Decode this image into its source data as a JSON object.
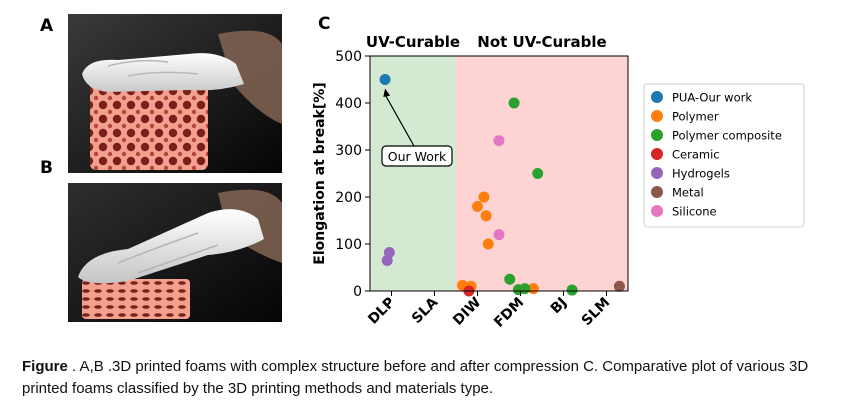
{
  "panels": {
    "a": "A",
    "b": "B",
    "c": "C"
  },
  "caption": {
    "label": "Figure",
    "text": "  . A,B .3D printed foams with complex structure before and after compression C. Comparative plot of various 3D printed foams classified by the 3D printing methods and materials type."
  },
  "chart_data": {
    "type": "scatter",
    "categories": [
      "DLP",
      "SLA",
      "DIW",
      "FDM",
      "BJ",
      "SLM"
    ],
    "ylabel": "Elongation at break[%]",
    "ylim": [
      0,
      500
    ],
    "yticks": [
      0,
      100,
      200,
      300,
      400,
      500
    ],
    "regions": [
      {
        "label": "UV-Curable",
        "color": "#d4e9d2",
        "from": -0.5,
        "to": 1.5
      },
      {
        "label": "Not UV-Curable",
        "color": "#fdd3d3",
        "from": 1.5,
        "to": 5.5
      }
    ],
    "annotation": {
      "text": "Our Work",
      "target": {
        "x": -0.15,
        "y": 450
      }
    },
    "legend_position": "right",
    "grid": false,
    "series": [
      {
        "name": "PUA-Our work",
        "color": "#1f77b4",
        "points": [
          {
            "x": -0.15,
            "y": 450
          }
        ]
      },
      {
        "name": "Polymer",
        "color": "#ff7f0e",
        "points": [
          {
            "x": 1.65,
            "y": 12
          },
          {
            "x": 1.85,
            "y": 10
          },
          {
            "x": 2.0,
            "y": 180
          },
          {
            "x": 2.15,
            "y": 200
          },
          {
            "x": 2.2,
            "y": 160
          },
          {
            "x": 2.25,
            "y": 100
          },
          {
            "x": 3.3,
            "y": 5
          }
        ]
      },
      {
        "name": "Polymer composite",
        "color": "#2ca02c",
        "points": [
          {
            "x": 2.85,
            "y": 400
          },
          {
            "x": 3.4,
            "y": 250
          },
          {
            "x": 2.75,
            "y": 25
          },
          {
            "x": 2.95,
            "y": 3
          },
          {
            "x": 3.1,
            "y": 5
          },
          {
            "x": 4.2,
            "y": 2
          }
        ]
      },
      {
        "name": "Ceramic",
        "color": "#d62728",
        "points": [
          {
            "x": 1.8,
            "y": 0
          }
        ]
      },
      {
        "name": "Hydrogels",
        "color": "#9467bd",
        "points": [
          {
            "x": -0.05,
            "y": 82
          },
          {
            "x": -0.1,
            "y": 65
          }
        ]
      },
      {
        "name": "Metal",
        "color": "#8c564b",
        "points": [
          {
            "x": 5.3,
            "y": 10
          }
        ]
      },
      {
        "name": "Silicone",
        "color": "#e377c2",
        "points": [
          {
            "x": 2.5,
            "y": 320
          },
          {
            "x": 2.5,
            "y": 120
          }
        ]
      }
    ]
  }
}
